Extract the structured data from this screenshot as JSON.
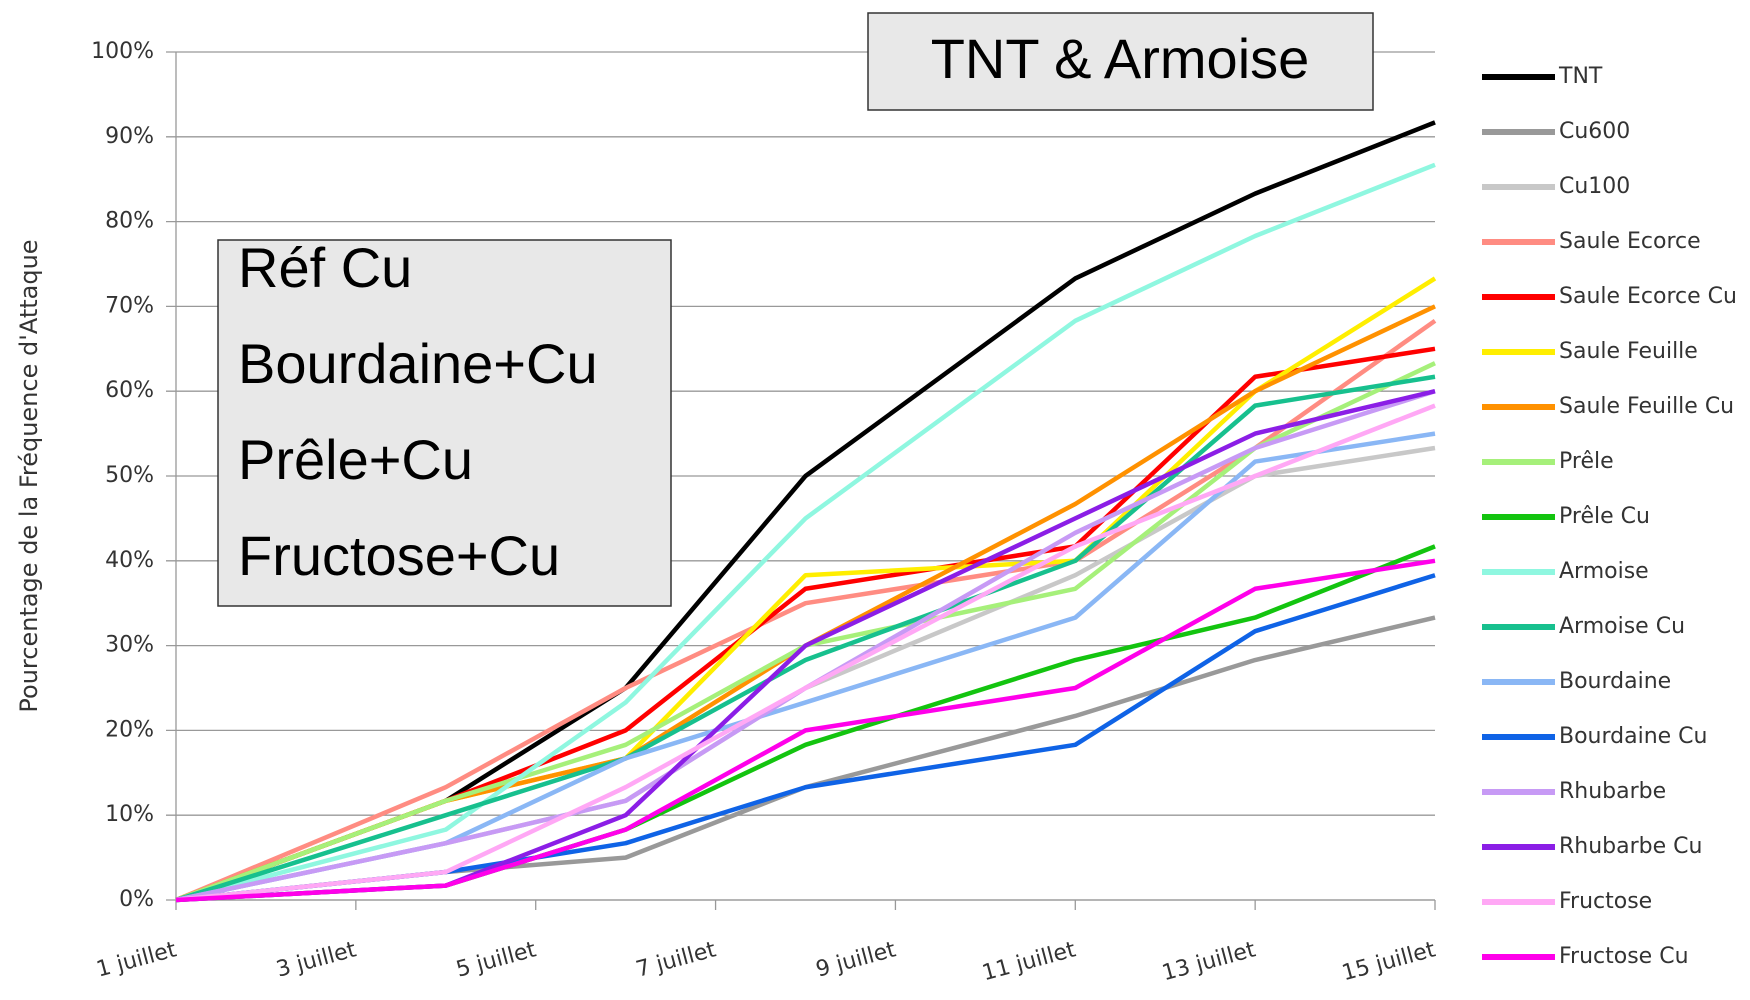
{
  "chart_data": {
    "type": "line",
    "y_label": "Pourcentage de la Fréquence d'Attaque",
    "annotations": [
      "TNT & Armoise",
      "Réf Cu",
      "Bourdaine+Cu",
      "Prêle+Cu",
      "Fructose+Cu"
    ],
    "x": [
      1,
      4,
      6,
      8,
      11,
      13,
      15
    ],
    "xlim": [
      1,
      15
    ],
    "xticks": [
      {
        "value": 1,
        "label": "1 juillet"
      },
      {
        "value": 3,
        "label": "3 juillet"
      },
      {
        "value": 5,
        "label": "5 juillet"
      },
      {
        "value": 7,
        "label": "7 juillet"
      },
      {
        "value": 9,
        "label": "9 juillet"
      },
      {
        "value": 11,
        "label": "11 juillet"
      },
      {
        "value": 13,
        "label": "13 juillet"
      },
      {
        "value": 15,
        "label": "15 juillet"
      }
    ],
    "ylim": [
      0,
      100
    ],
    "yticks": [
      {
        "value": 0,
        "label": "0%"
      },
      {
        "value": 10,
        "label": "10%"
      },
      {
        "value": 20,
        "label": "20%"
      },
      {
        "value": 30,
        "label": "30%"
      },
      {
        "value": 40,
        "label": "40%"
      },
      {
        "value": 50,
        "label": "50%"
      },
      {
        "value": 60,
        "label": "60%"
      },
      {
        "value": 70,
        "label": "70%"
      },
      {
        "value": 80,
        "label": "80%"
      },
      {
        "value": 90,
        "label": "90%"
      },
      {
        "value": 100,
        "label": "100%"
      }
    ],
    "grid": true,
    "legend": "right",
    "series": [
      {
        "name": "TNT",
        "color": "#000000",
        "values": [
          0,
          11.7,
          25,
          50,
          73.3,
          83.3,
          91.7
        ]
      },
      {
        "name": "Cu600",
        "color": "#999999",
        "values": [
          0,
          3.3,
          5,
          13.3,
          21.7,
          28.3,
          33.3
        ]
      },
      {
        "name": "Cu100",
        "color": "#c8c8c8",
        "values": [
          0,
          6.7,
          11.7,
          25,
          38.3,
          50,
          53.3
        ]
      },
      {
        "name": "Saule Ecorce",
        "color": "#ff8c82",
        "values": [
          0,
          13.3,
          25,
          35,
          40,
          53.3,
          68.3
        ]
      },
      {
        "name": "Saule Ecorce Cu",
        "color": "#ff0000",
        "values": [
          0,
          11.7,
          20,
          36.7,
          41.7,
          61.7,
          65
        ]
      },
      {
        "name": "Saule Feuille",
        "color": "#ffee00",
        "values": [
          0,
          11.7,
          16.7,
          38.3,
          40,
          60,
          73.3
        ]
      },
      {
        "name": "Saule Feuille Cu",
        "color": "#ff9100",
        "values": [
          0,
          11.7,
          16.7,
          30,
          46.7,
          60,
          70
        ]
      },
      {
        "name": "Prêle",
        "color": "#a6f07a",
        "values": [
          0,
          11.7,
          18.3,
          30,
          36.7,
          53.3,
          63.3
        ]
      },
      {
        "name": "Prêle Cu",
        "color": "#13c40f",
        "values": [
          0,
          1.7,
          8.3,
          18.3,
          28.3,
          33.3,
          41.7
        ]
      },
      {
        "name": "Armoise",
        "color": "#8ff7e0",
        "values": [
          0,
          8.3,
          23.3,
          45,
          68.3,
          78.3,
          86.7
        ]
      },
      {
        "name": "Armoise Cu",
        "color": "#17c08e",
        "values": [
          0,
          10,
          16.7,
          28.3,
          40,
          58.3,
          61.7
        ]
      },
      {
        "name": "Bourdaine",
        "color": "#8ab7f5",
        "values": [
          0,
          6.7,
          16.7,
          23.3,
          33.3,
          51.7,
          55
        ]
      },
      {
        "name": "Bourdaine Cu",
        "color": "#0f63e6",
        "values": [
          0,
          3.3,
          6.7,
          13.3,
          18.3,
          31.7,
          38.3
        ]
      },
      {
        "name": "Rhubarbe",
        "color": "#c79af5",
        "values": [
          0,
          6.7,
          11.7,
          25,
          43.3,
          53.3,
          60
        ]
      },
      {
        "name": "Rhubarbe Cu",
        "color": "#8b1ee6",
        "values": [
          0,
          1.7,
          10,
          30,
          45,
          55,
          60
        ]
      },
      {
        "name": "Fructose",
        "color": "#ffa8f5",
        "values": [
          0,
          3.3,
          13.3,
          25,
          41.7,
          50,
          58.3
        ]
      },
      {
        "name": "Fructose Cu",
        "color": "#ff00ea",
        "values": [
          0,
          1.7,
          8.3,
          20,
          25,
          36.7,
          40
        ]
      }
    ]
  }
}
